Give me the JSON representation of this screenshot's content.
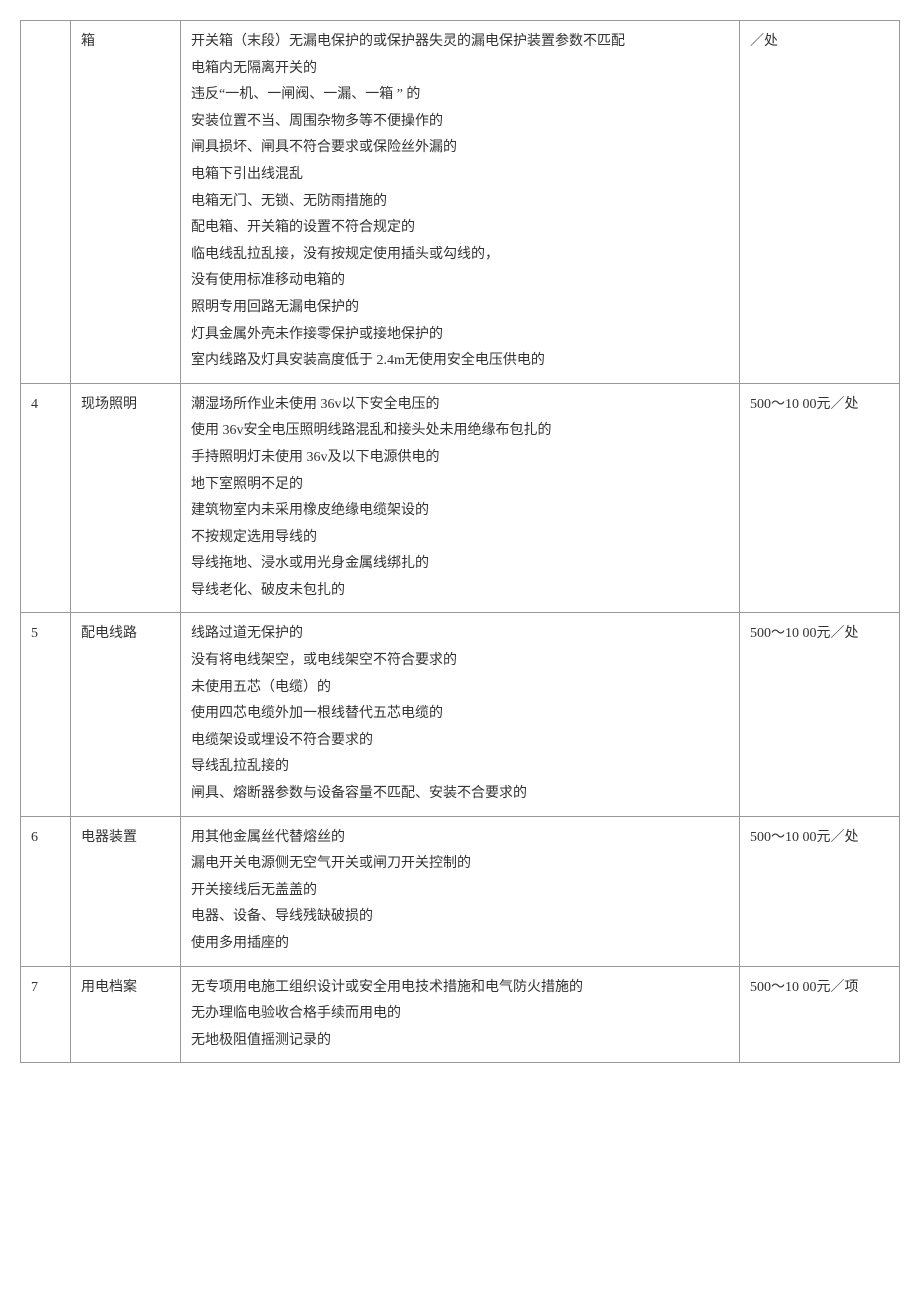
{
  "rows": [
    {
      "num": "",
      "category": "箱",
      "penalty": "／处",
      "desc": [
        "开关箱（末段）无漏电保护的或保护器失灵的漏电保护装置参数不匹配",
        "电箱内无隔离开关的",
        "违反“一机、一闸阀、一漏、一箱    ” 的",
        "安装位置不当、周围杂物多等不便操作的",
        "闸具损坏、闸具不符合要求或保险丝外漏的",
        "电箱下引出线混乱",
        "电箱无门、无锁、无防雨措施的",
        "配电箱、开关箱的设置不符合规定的",
        "临电线乱拉乱接，没有按规定使用插头或勾线的，",
        "没有使用标准移动电箱的",
        "照明专用回路无漏电保护的",
        "灯具金属外壳未作接零保护或接地保护的",
        "室内线路及灯具安装高度低于     2.4m无使用安全电压供电的"
      ]
    },
    {
      "num": "4",
      "category": "现场照明",
      "penalty": "500～10  00元／处",
      "desc": [
        "潮湿场所作业未使用    36v以下安全电压的",
        "使用  36v安全电压照明线路混乱和接头处未用绝缘布包扎的",
        "手持照明灯未使用     36v及以下电源供电的",
        "地下室照明不足的",
        "建筑物室内未采用橡皮绝缘电缆架设的",
        "不按规定选用导线的",
        "导线拖地、浸水或用光身金属线绑扎的",
        "导线老化、破皮未包扎的"
      ]
    },
    {
      "num": "5",
      "category": "配电线路",
      "penalty": "500～10  00元／处",
      "desc": [
        "线路过道无保护的",
        "没有将电线架空，或电线架空不符合要求的",
        "未使用五芯（电缆）的",
        "使用四芯电缆外加一根线替代五芯电缆的",
        "电缆架设或埋设不符合要求的",
        "导线乱拉乱接的",
        "闸具、熔断器参数与设备容量不匹配、安装不合要求的"
      ]
    },
    {
      "num": "6",
      "category": "电器装置",
      "penalty": "500～10  00元／处",
      "desc": [
        "用其他金属丝代替熔丝的",
        "漏电开关电源侧无空气开关或闸刀开关控制的",
        "开关接线后无盖盖的",
        "电器、设备、导线残缺破损的",
        "使用多用插座的"
      ]
    },
    {
      "num": "7",
      "category": "用电档案",
      "penalty": "500～10  00元／项",
      "desc": [
        "无专项用电施工组织设计或安全用电技术措施和电气防火措施的",
        "无办理临电验收合格手续而用电的",
        "无地极阻值摇测记录的"
      ]
    }
  ],
  "style": {
    "font_size": 14,
    "line_height": 1.9,
    "border_color": "#999",
    "text_color": "#333",
    "background_color": "#ffffff",
    "col_widths": {
      "num": 50,
      "category": 110,
      "penalty": 160
    }
  }
}
